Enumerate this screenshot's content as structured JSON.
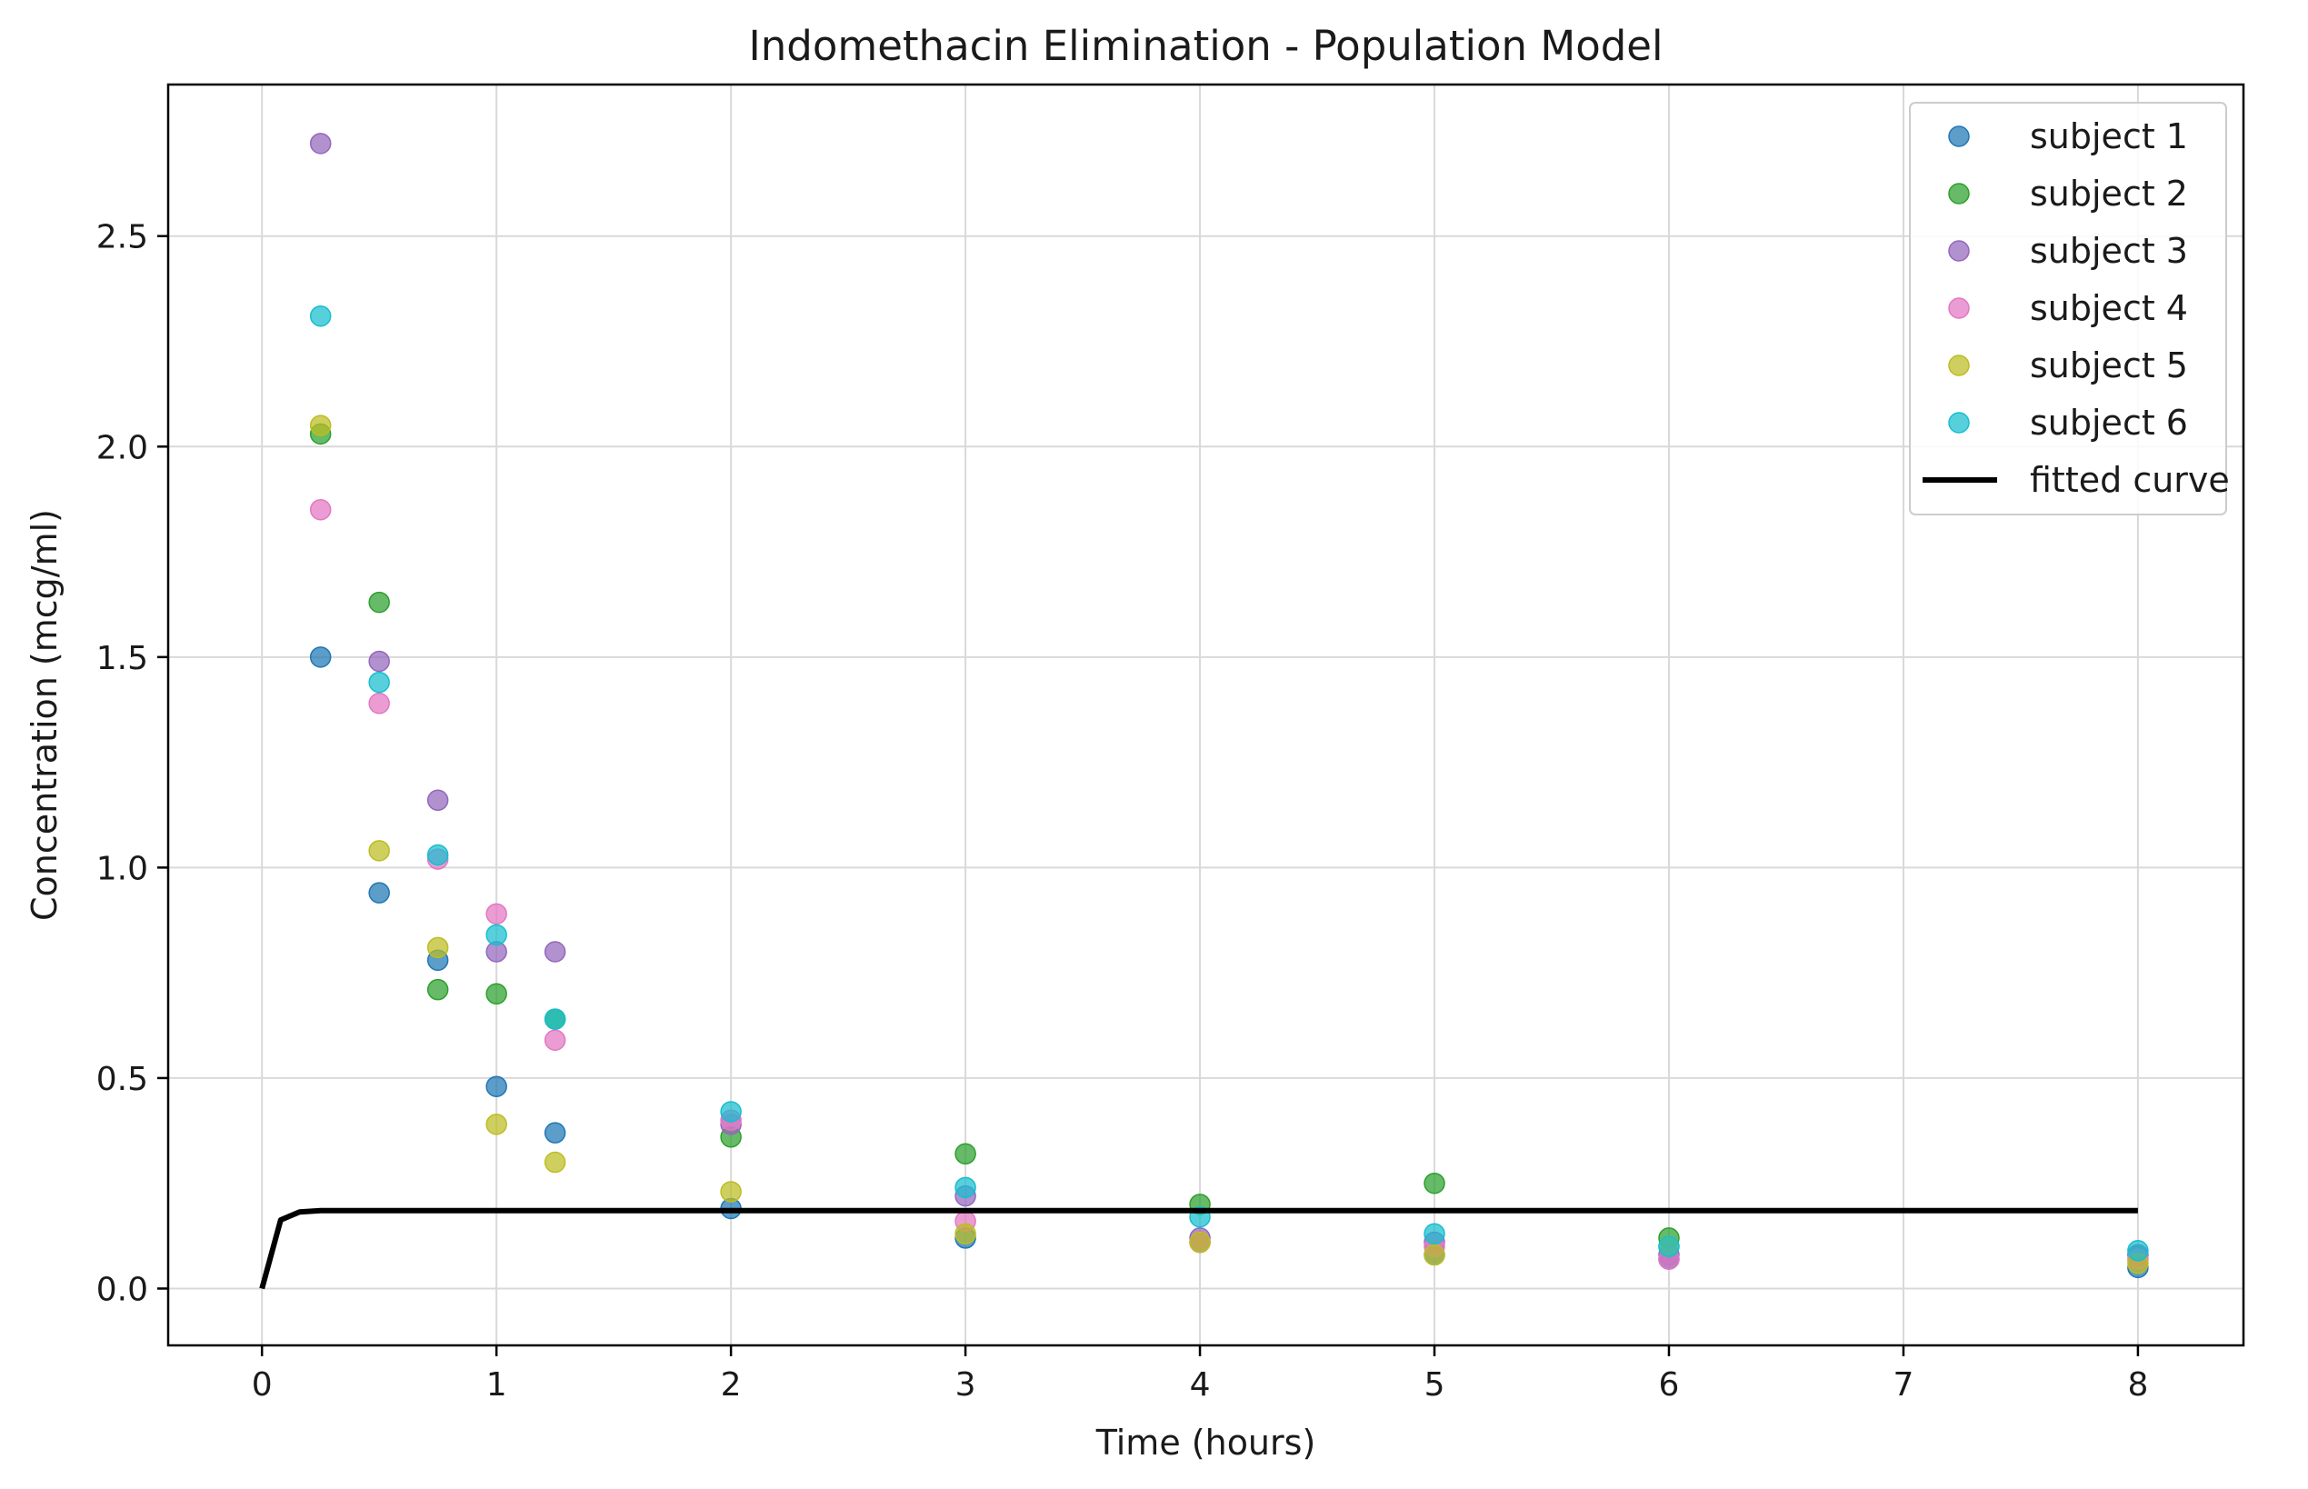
{
  "chart_data": {
    "type": "scatter",
    "title": "Indomethacin Elimination - Population Model",
    "xlabel": "Time (hours)",
    "ylabel": "Concentration (mcg/ml)",
    "xlim": [
      -0.4,
      8.45
    ],
    "ylim": [
      -0.135,
      2.86
    ],
    "xticks": [
      0,
      1,
      2,
      3,
      4,
      5,
      6,
      7,
      8
    ],
    "xtick_labels": [
      "0",
      "1",
      "2",
      "3",
      "4",
      "5",
      "6",
      "7",
      "8"
    ],
    "yticks": [
      0.0,
      0.5,
      1.0,
      1.5,
      2.0,
      2.5
    ],
    "ytick_labels": [
      "0.0",
      "0.5",
      "1.0",
      "1.5",
      "2.0",
      "2.5"
    ],
    "grid": true,
    "legend_position": "top-right",
    "x": [
      0.25,
      0.5,
      0.75,
      1,
      1.25,
      2,
      3,
      4,
      5,
      6,
      8
    ],
    "series": [
      {
        "name": "subject 1",
        "color": "#1f77b4",
        "values": [
          1.5,
          0.94,
          0.78,
          0.48,
          0.37,
          0.19,
          0.12,
          0.11,
          0.08,
          0.07,
          0.05
        ]
      },
      {
        "name": "subject 2",
        "color": "#2ca02c",
        "values": [
          2.03,
          1.63,
          0.71,
          0.7,
          0.64,
          0.36,
          0.32,
          0.2,
          0.25,
          0.12,
          0.08
        ]
      },
      {
        "name": "subject 3",
        "color": "#9467bd",
        "values": [
          2.72,
          1.49,
          1.16,
          0.8,
          0.8,
          0.39,
          0.22,
          0.12,
          0.11,
          0.08,
          0.08
        ]
      },
      {
        "name": "subject 4",
        "color": "#e377c2",
        "values": [
          1.85,
          1.39,
          1.02,
          0.89,
          0.59,
          0.4,
          0.16,
          0.11,
          0.1,
          0.07,
          0.07
        ]
      },
      {
        "name": "subject 5",
        "color": "#bcbd22",
        "values": [
          2.05,
          1.04,
          0.81,
          0.39,
          0.3,
          0.23,
          0.13,
          0.11,
          0.08,
          0.1,
          0.06
        ]
      },
      {
        "name": "subject 6",
        "color": "#17becf",
        "values": [
          2.31,
          1.44,
          1.03,
          0.84,
          0.64,
          0.42,
          0.24,
          0.17,
          0.13,
          0.1,
          0.09
        ]
      }
    ],
    "fitted_curve": {
      "name": "fitted curve",
      "color": "#000000",
      "x": [
        0,
        0.08,
        0.16,
        0.25,
        0.5,
        1,
        2,
        3,
        4,
        5,
        6,
        7,
        8
      ],
      "y": [
        0,
        0.163,
        0.182,
        0.185,
        0.185,
        0.185,
        0.185,
        0.185,
        0.185,
        0.185,
        0.185,
        0.185,
        0.185
      ]
    }
  }
}
